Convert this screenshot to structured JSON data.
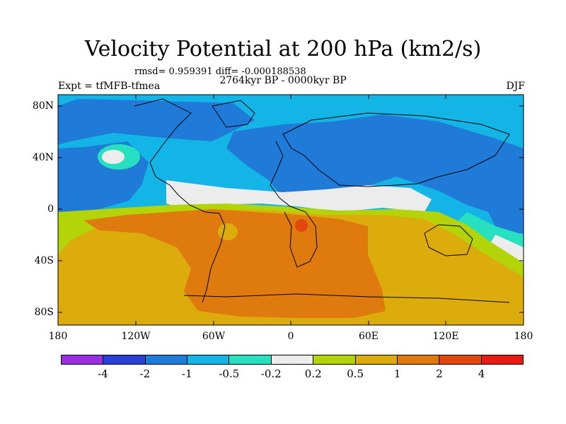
{
  "header": {
    "title": "Velocity Potential at 200 hPa (km2/s)",
    "stats": "rmsd= 0.959391 diff= -0.000188538",
    "period": "2764kyr BP - 0000kyr BP",
    "experiment": "Expt = tfMFB-tfmea",
    "season": "DJF"
  },
  "axes": {
    "lat_labels": [
      "80N",
      "40N",
      "0",
      "40S",
      "80S"
    ],
    "lon_labels": [
      "180",
      "120W",
      "60W",
      "0",
      "60E",
      "120E",
      "180"
    ]
  },
  "colorbar": {
    "colors": [
      "#9a2ee0",
      "#2a3fd6",
      "#1f7ad8",
      "#13b4e6",
      "#26e0bf",
      "#ececec",
      "#b4d40a",
      "#dcac0c",
      "#df7a0e",
      "#e2470f",
      "#e81b13"
    ],
    "labels": [
      "-4",
      "-2",
      "-1",
      "-0.5",
      "-0.2",
      "0.2",
      "0.5",
      "1",
      "2",
      "4"
    ]
  },
  "map_colors": {
    "border": "#000000",
    "coast": "#000000"
  }
}
